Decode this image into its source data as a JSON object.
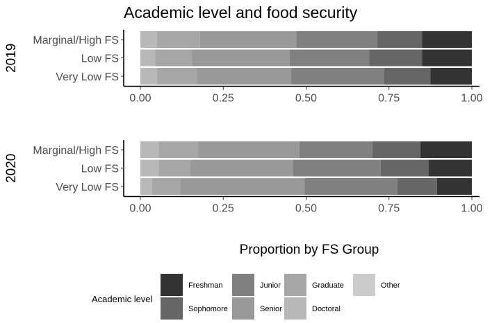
{
  "chart_data": {
    "type": "bar",
    "orientation": "horizontal",
    "stacked": "proportion",
    "title": "Academic level and food security",
    "xlabel": "Proportion by FS Group",
    "xlim": [
      0,
      1
    ],
    "xticks": [
      "0.00",
      "0.25",
      "0.50",
      "0.75",
      "1.00"
    ],
    "legend": {
      "title": "Academic level",
      "position": "bottom",
      "entries": [
        {
          "name": "Freshman",
          "color": "#333333"
        },
        {
          "name": "Sophomore",
          "color": "#666666"
        },
        {
          "name": "Junior",
          "color": "#808080"
        },
        {
          "name": "Senior",
          "color": "#999999"
        },
        {
          "name": "Graduate",
          "color": "#a6a6a6"
        },
        {
          "name": "Doctoral",
          "color": "#b8b8b8"
        },
        {
          "name": "Other",
          "color": "#cccccc"
        }
      ]
    },
    "stack_order_left_to_right": [
      "Other",
      "Doctoral",
      "Graduate",
      "Senior",
      "Junior",
      "Sophomore",
      "Freshman"
    ],
    "panels": [
      {
        "label": "2019",
        "categories": [
          "Marginal/High FS",
          "Low FS",
          "Very Low FS"
        ],
        "series": [
          {
            "name": "Other",
            "values": [
              0.0,
              0.0,
              0.0
            ]
          },
          {
            "name": "Doctoral",
            "values": [
              0.05,
              0.045,
              0.05
            ]
          },
          {
            "name": "Graduate",
            "values": [
              0.13,
              0.11,
              0.12
            ]
          },
          {
            "name": "Senior",
            "values": [
              0.29,
              0.295,
              0.285
            ]
          },
          {
            "name": "Junior",
            "values": [
              0.245,
              0.24,
              0.28
            ]
          },
          {
            "name": "Sophomore",
            "values": [
              0.135,
              0.16,
              0.14
            ]
          },
          {
            "name": "Freshman",
            "values": [
              0.15,
              0.15,
              0.125
            ]
          }
        ]
      },
      {
        "label": "2020",
        "categories": [
          "Marginal/High FS",
          "Low FS",
          "Very Low FS"
        ],
        "series": [
          {
            "name": "Other",
            "values": [
              0.0,
              0.0,
              0.0
            ]
          },
          {
            "name": "Doctoral",
            "values": [
              0.055,
              0.055,
              0.035
            ]
          },
          {
            "name": "Graduate",
            "values": [
              0.12,
              0.095,
              0.085
            ]
          },
          {
            "name": "Senior",
            "values": [
              0.305,
              0.31,
              0.375
            ]
          },
          {
            "name": "Junior",
            "values": [
              0.22,
              0.265,
              0.28
            ]
          },
          {
            "name": "Sophomore",
            "values": [
              0.145,
              0.145,
              0.12
            ]
          },
          {
            "name": "Freshman",
            "values": [
              0.155,
              0.13,
              0.105
            ]
          }
        ]
      }
    ]
  }
}
